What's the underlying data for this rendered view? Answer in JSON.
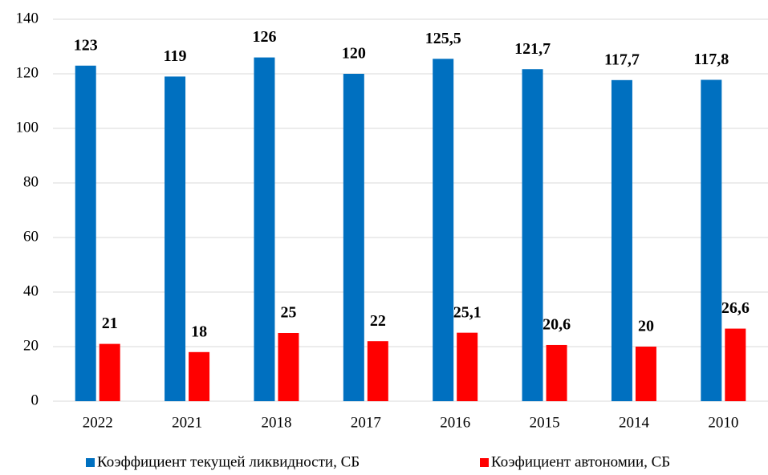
{
  "chart_data": {
    "type": "bar",
    "categories": [
      "2022",
      "2021",
      "2018",
      "2017",
      "2016",
      "2015",
      "2014",
      "2010"
    ],
    "series": [
      {
        "name": "Коэффициент текущей ликвидности, СБ",
        "color": "#0070c0",
        "values": [
          123,
          119,
          126,
          120,
          125.5,
          121.7,
          117.7,
          117.8
        ],
        "value_labels": [
          "123",
          "119",
          "126",
          "120",
          "125,5",
          "121,7",
          "117,7",
          "117,8"
        ]
      },
      {
        "name": "Коэфициент автономии, СБ",
        "color": "#ff0000",
        "values": [
          21,
          18,
          25,
          22,
          25.1,
          20.6,
          20,
          26.6
        ],
        "value_labels": [
          "21",
          "18",
          "25",
          "22",
          "25,1",
          "20,6",
          "20",
          "26,6"
        ]
      }
    ],
    "ylim": [
      0,
      140
    ],
    "yticks": [
      0,
      20,
      40,
      60,
      80,
      100,
      120,
      140
    ],
    "grid": true,
    "legend": "bottom"
  }
}
